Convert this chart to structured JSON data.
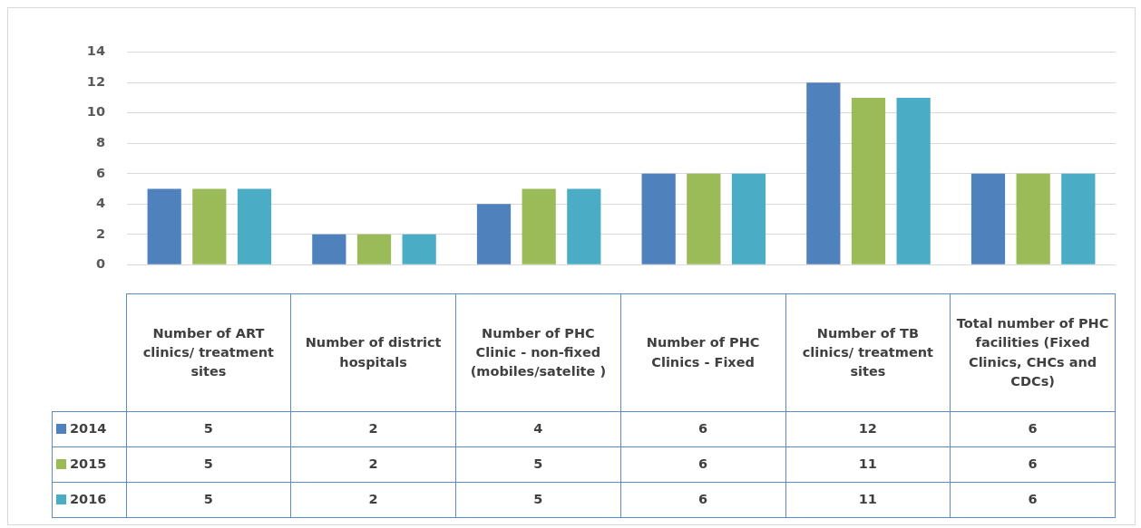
{
  "chart_data": {
    "type": "bar",
    "categories": [
      "Number of ART clinics/ treatment sites",
      "Number of district hospitals",
      "Number of PHC Clinic - non-fixed (mobiles/satelite )",
      "Number of PHC Clinics - Fixed",
      "Number of TB clinics/ treatment sites",
      "Total number of PHC facilities (Fixed Clinics, CHCs and CDCs)"
    ],
    "series": [
      {
        "name": "2014",
        "color": "#4f81bd",
        "values": [
          5,
          2,
          4,
          6,
          12,
          6
        ]
      },
      {
        "name": "2015",
        "color": "#9bbb59",
        "values": [
          5,
          2,
          5,
          6,
          11,
          6
        ]
      },
      {
        "name": "2016",
        "color": "#4bacc6",
        "values": [
          5,
          2,
          5,
          6,
          11,
          6
        ]
      }
    ],
    "ylim": [
      0,
      14
    ],
    "yticks": [
      0,
      2,
      4,
      6,
      8,
      10,
      12,
      14
    ],
    "grid": "y",
    "legend": "bottom",
    "data_labels": true
  }
}
